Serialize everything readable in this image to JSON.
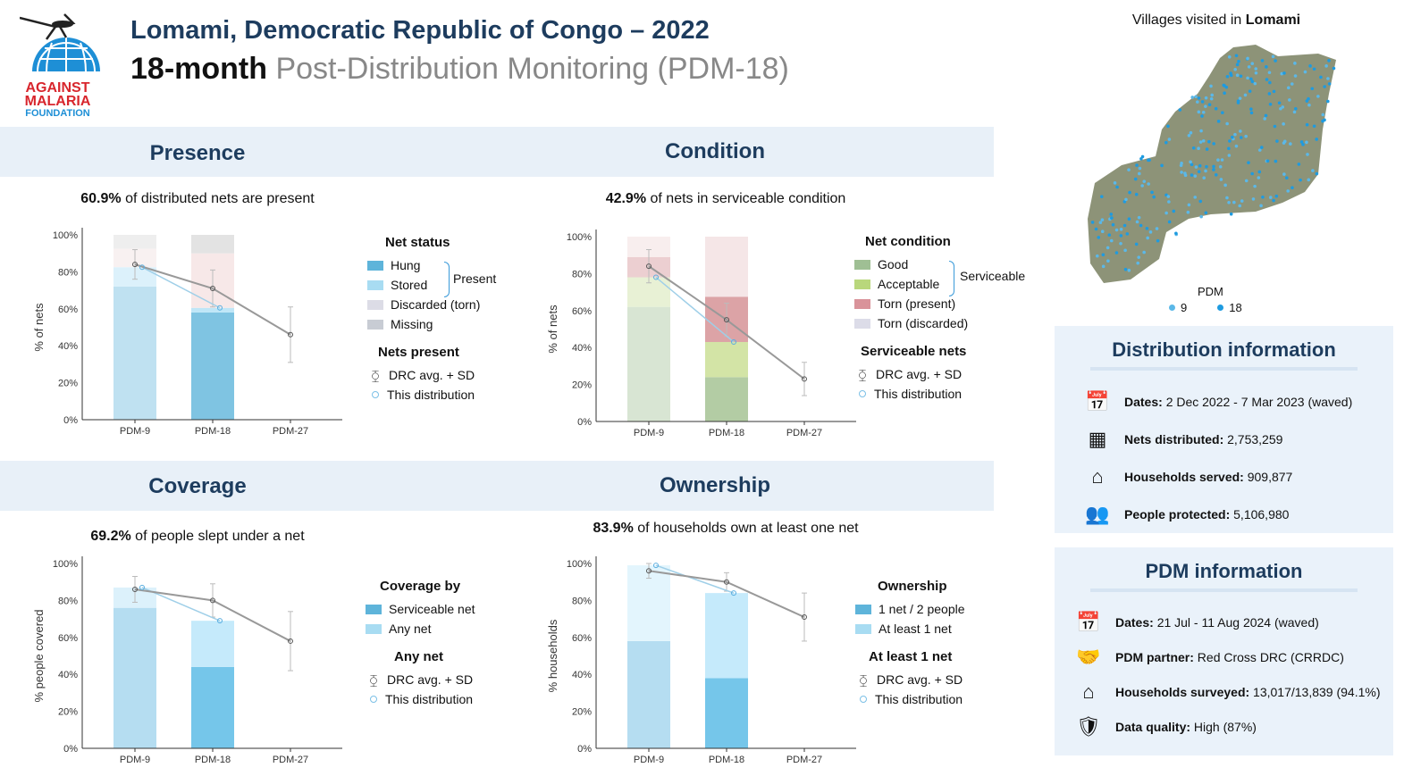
{
  "header": {
    "logo_text": [
      "AGAINST",
      "MALARIA",
      "FOUNDATION"
    ],
    "title": "Lomami, Democratic Republic of Congo – 2022",
    "subtitle_bold": "18-month",
    "subtitle_rest": "Post-Distribution Monitoring (PDM-18)"
  },
  "sections": {
    "presence": {
      "title": "Presence",
      "stat": "60.9%",
      "stat_text": "of distributed nets are present",
      "legend": {
        "heading": "Net status",
        "items": [
          "Hung",
          "Stored",
          "Discarded (torn)",
          "Missing"
        ],
        "group_label": "Present",
        "heading2": "Nets present",
        "avg": "DRC avg. + SD",
        "dist": "This distribution"
      }
    },
    "condition": {
      "title": "Condition",
      "stat": "42.9%",
      "stat_text": "of nets in serviceable condition",
      "legend": {
        "heading": "Net condition",
        "items": [
          "Good",
          "Acceptable",
          "Torn (present)",
          "Torn (discarded)"
        ],
        "group_label": "Serviceable",
        "heading2": "Serviceable nets",
        "avg": "DRC avg. + SD",
        "dist": "This distribution"
      }
    },
    "coverage": {
      "title": "Coverage",
      "stat": "69.2%",
      "stat_text": "of people slept under a net",
      "legend": {
        "heading": "Coverage by",
        "items": [
          "Serviceable net",
          "Any net"
        ],
        "heading2": "Any net",
        "avg": "DRC avg. + SD",
        "dist": "This distribution"
      }
    },
    "ownership": {
      "title": "Ownership",
      "stat": "83.9%",
      "stat_text": "of households own at least one net",
      "legend": {
        "heading": "Ownership",
        "items": [
          "1 net / 2 people",
          "At least 1 net"
        ],
        "heading2": "At least 1 net",
        "avg": "DRC avg. + SD",
        "dist": "This distribution"
      }
    }
  },
  "map": {
    "title_pre": "Villages visited in",
    "title_bold": "Lomami",
    "legend_title": "PDM",
    "legend_items": [
      "9",
      "18"
    ],
    "dot_colors": [
      "#5bb8e8",
      "#1e9be0"
    ]
  },
  "distribution_info": {
    "title": "Distribution information",
    "rows": [
      {
        "icon": "calendar",
        "label": "Dates:",
        "value": "2 Dec 2022 - 7 Mar 2023 (waved)"
      },
      {
        "icon": "net",
        "label": "Nets distributed:",
        "value": "2,753,259"
      },
      {
        "icon": "house",
        "label": "Households served:",
        "value": "909,877"
      },
      {
        "icon": "people",
        "label": "People protected:",
        "value": "5,106,980"
      }
    ]
  },
  "pdm_info": {
    "title": "PDM information",
    "rows": [
      {
        "icon": "calendar",
        "label": "Dates:",
        "value": "21 Jul - 11 Aug 2024 (waved)"
      },
      {
        "icon": "handshake",
        "label": "PDM partner:",
        "value": "Red Cross DRC (CRRDC)"
      },
      {
        "icon": "house",
        "label": "Households surveyed:",
        "value": "13,017/13,839 (94.1%)"
      },
      {
        "icon": "shield",
        "label": "Data quality:",
        "value": "High (87%)"
      }
    ]
  },
  "chart_data": [
    {
      "id": "presence",
      "type": "bar",
      "ylabel": "% of nets",
      "categories": [
        "PDM-9",
        "PDM-18",
        "PDM-27"
      ],
      "yticks": [
        "0%",
        "20%",
        "40%",
        "60%",
        "80%",
        "100%"
      ],
      "ylim": [
        0,
        100
      ],
      "stacks": [
        [
          {
            "name": "Hung",
            "value": 72,
            "color": "#bfe1f1"
          },
          {
            "name": "Stored",
            "value": 10.5,
            "color": "#dcf1fb"
          },
          {
            "name": "Discarded (torn)",
            "value": 10,
            "color": "#f8f1f1"
          },
          {
            "name": "Missing",
            "value": 7.5,
            "color": "#eeeeee"
          }
        ],
        [
          {
            "name": "Hung",
            "value": 58,
            "color": "#7fc4e2"
          },
          {
            "name": "Stored",
            "value": 2.5,
            "color": "#bfe6f7"
          },
          {
            "name": "Discarded (torn)",
            "value": 29.5,
            "color": "#f7e8e8"
          },
          {
            "name": "Missing",
            "value": 10,
            "color": "#e3e3e3"
          }
        ]
      ],
      "drc_avg": [
        84,
        71,
        46
      ],
      "drc_sd": [
        8,
        10,
        15
      ],
      "this_distribution": [
        82.5,
        60.5
      ]
    },
    {
      "id": "condition",
      "type": "bar",
      "ylabel": "% of nets",
      "categories": [
        "PDM-9",
        "PDM-18",
        "PDM-27"
      ],
      "yticks": [
        "0%",
        "20%",
        "40%",
        "60%",
        "80%",
        "100%"
      ],
      "ylim": [
        0,
        100
      ],
      "stacks": [
        [
          {
            "name": "Good",
            "value": 62,
            "color": "#d8e5d3"
          },
          {
            "name": "Acceptable",
            "value": 16,
            "color": "#e8f1d5"
          },
          {
            "name": "Torn (present)",
            "value": 11,
            "color": "#eccfd1"
          },
          {
            "name": "Torn (discarded)",
            "value": 11,
            "color": "#f8eeee"
          }
        ],
        [
          {
            "name": "Good",
            "value": 24,
            "color": "#b3cca4"
          },
          {
            "name": "Acceptable",
            "value": 19,
            "color": "#d3e4a6"
          },
          {
            "name": "Torn (present)",
            "value": 24.5,
            "color": "#dca3a6"
          },
          {
            "name": "Torn (discarded)",
            "value": 32.5,
            "color": "#f5e6e7"
          }
        ]
      ],
      "drc_avg": [
        84,
        55,
        23
      ],
      "drc_sd": [
        9,
        9,
        9
      ],
      "this_distribution": [
        78,
        43
      ]
    },
    {
      "id": "coverage",
      "type": "bar",
      "ylabel": "% people covered",
      "categories": [
        "PDM-9",
        "PDM-18",
        "PDM-27"
      ],
      "yticks": [
        "0%",
        "20%",
        "40%",
        "60%",
        "80%",
        "100%"
      ],
      "ylim": [
        0,
        100
      ],
      "stacks": [
        [
          {
            "name": "Serviceable net",
            "value": 76,
            "color": "#b5ddf1"
          },
          {
            "name": "Any net",
            "value": 11,
            "color": "#dcf1fb"
          }
        ],
        [
          {
            "name": "Serviceable net",
            "value": 44,
            "color": "#75c6ea"
          },
          {
            "name": "Any net",
            "value": 25,
            "color": "#c5eafb"
          }
        ]
      ],
      "drc_avg": [
        86,
        80,
        58
      ],
      "drc_sd": [
        7,
        9,
        16
      ],
      "this_distribution": [
        87,
        69
      ]
    },
    {
      "id": "ownership",
      "type": "bar",
      "ylabel": "% households",
      "categories": [
        "PDM-9",
        "PDM-18",
        "PDM-27"
      ],
      "yticks": [
        "0%",
        "20%",
        "40%",
        "60%",
        "80%",
        "100%"
      ],
      "ylim": [
        0,
        100
      ],
      "stacks": [
        [
          {
            "name": "1 net / 2 people",
            "value": 58,
            "color": "#b5ddf1"
          },
          {
            "name": "At least 1 net",
            "value": 41,
            "color": "#e3f5fd"
          }
        ],
        [
          {
            "name": "1 net / 2 people",
            "value": 38,
            "color": "#75c6ea"
          },
          {
            "name": "At least 1 net",
            "value": 46,
            "color": "#c5eafb"
          }
        ]
      ],
      "drc_avg": [
        96,
        90,
        71
      ],
      "drc_sd": [
        4,
        5,
        13
      ],
      "this_distribution": [
        99,
        84
      ]
    }
  ],
  "legend_colors": {
    "presence": [
      "#5eb4da",
      "#a8dcf2",
      "#dcdce6",
      "#c8ccd4"
    ],
    "condition": [
      "#9fbf94",
      "#b9d77c",
      "#d9939a",
      "#dcdce8"
    ],
    "coverage": [
      "#5eb4da",
      "#a8dcf2"
    ],
    "ownership": [
      "#5eb4da",
      "#a8dcf2"
    ]
  }
}
